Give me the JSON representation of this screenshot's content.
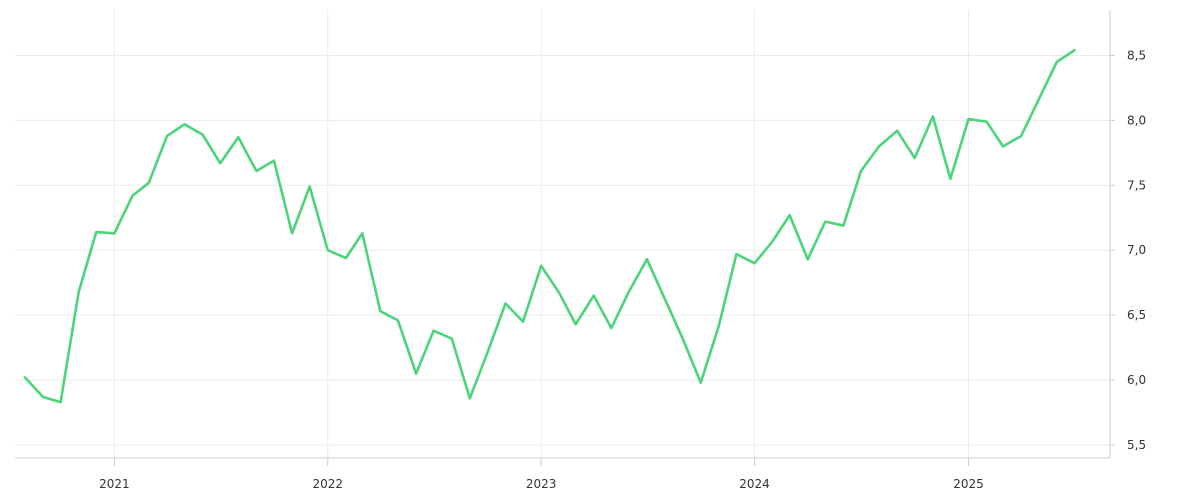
{
  "chart_data": {
    "type": "line",
    "x_tick_labels": [
      "2021",
      "2022",
      "2023",
      "2024",
      "2025"
    ],
    "y_tick_labels": [
      "5,5",
      "6,0",
      "6,5",
      "7,0",
      "7,5",
      "8,0",
      "8,5"
    ],
    "y_ticks": [
      5.5,
      6.0,
      6.5,
      7.0,
      7.5,
      8.0,
      8.5
    ],
    "ylim": [
      5.4,
      8.85
    ],
    "xlim": [
      "2020-07-15",
      "2025-08-31"
    ],
    "grid": true,
    "legend": "none",
    "colors": {
      "line": "#4cd47a"
    },
    "series": [
      {
        "x": [
          "2020-08-01",
          "2020-09-01",
          "2020-10-01",
          "2020-11-01",
          "2020-12-01",
          "2021-01-01",
          "2021-02-01",
          "2021-03-01",
          "2021-04-01",
          "2021-05-01",
          "2021-06-01",
          "2021-07-01",
          "2021-08-01",
          "2021-09-01",
          "2021-10-01",
          "2021-11-01",
          "2021-12-01",
          "2022-01-01",
          "2022-02-01",
          "2022-03-01",
          "2022-04-01",
          "2022-05-01",
          "2022-06-01",
          "2022-07-01",
          "2022-08-01",
          "2022-09-01",
          "2022-10-01",
          "2022-11-01",
          "2022-12-01",
          "2023-01-01",
          "2023-02-01",
          "2023-03-01",
          "2023-04-01",
          "2023-05-01",
          "2023-06-01",
          "2023-07-01",
          "2023-08-01",
          "2023-09-01",
          "2023-10-01",
          "2023-11-01",
          "2023-12-01",
          "2024-01-01",
          "2024-02-01",
          "2024-03-01",
          "2024-04-01",
          "2024-05-01",
          "2024-06-01",
          "2024-07-01",
          "2024-08-01",
          "2024-09-01",
          "2024-10-01",
          "2024-11-01",
          "2024-12-01",
          "2025-01-01",
          "2025-02-01",
          "2025-03-01",
          "2025-04-01",
          "2025-05-01",
          "2025-06-01",
          "2025-07-01"
        ],
        "values": [
          6.02,
          5.87,
          5.83,
          6.68,
          7.14,
          7.13,
          7.42,
          7.52,
          7.88,
          7.97,
          7.89,
          7.67,
          7.87,
          7.61,
          7.69,
          7.13,
          7.49,
          7.0,
          6.94,
          7.13,
          6.53,
          6.46,
          6.05,
          6.38,
          6.32,
          5.86,
          6.21,
          6.59,
          6.45,
          6.88,
          6.67,
          6.43,
          6.65,
          6.4,
          6.69,
          6.93,
          6.62,
          6.31,
          5.98,
          6.42,
          6.97,
          6.9,
          7.07,
          7.27,
          6.93,
          7.22,
          7.19,
          7.61,
          7.8,
          7.92,
          7.71,
          8.03,
          7.55,
          8.01,
          7.99,
          7.8,
          7.88,
          8.16,
          8.45,
          8.54
        ]
      }
    ]
  }
}
